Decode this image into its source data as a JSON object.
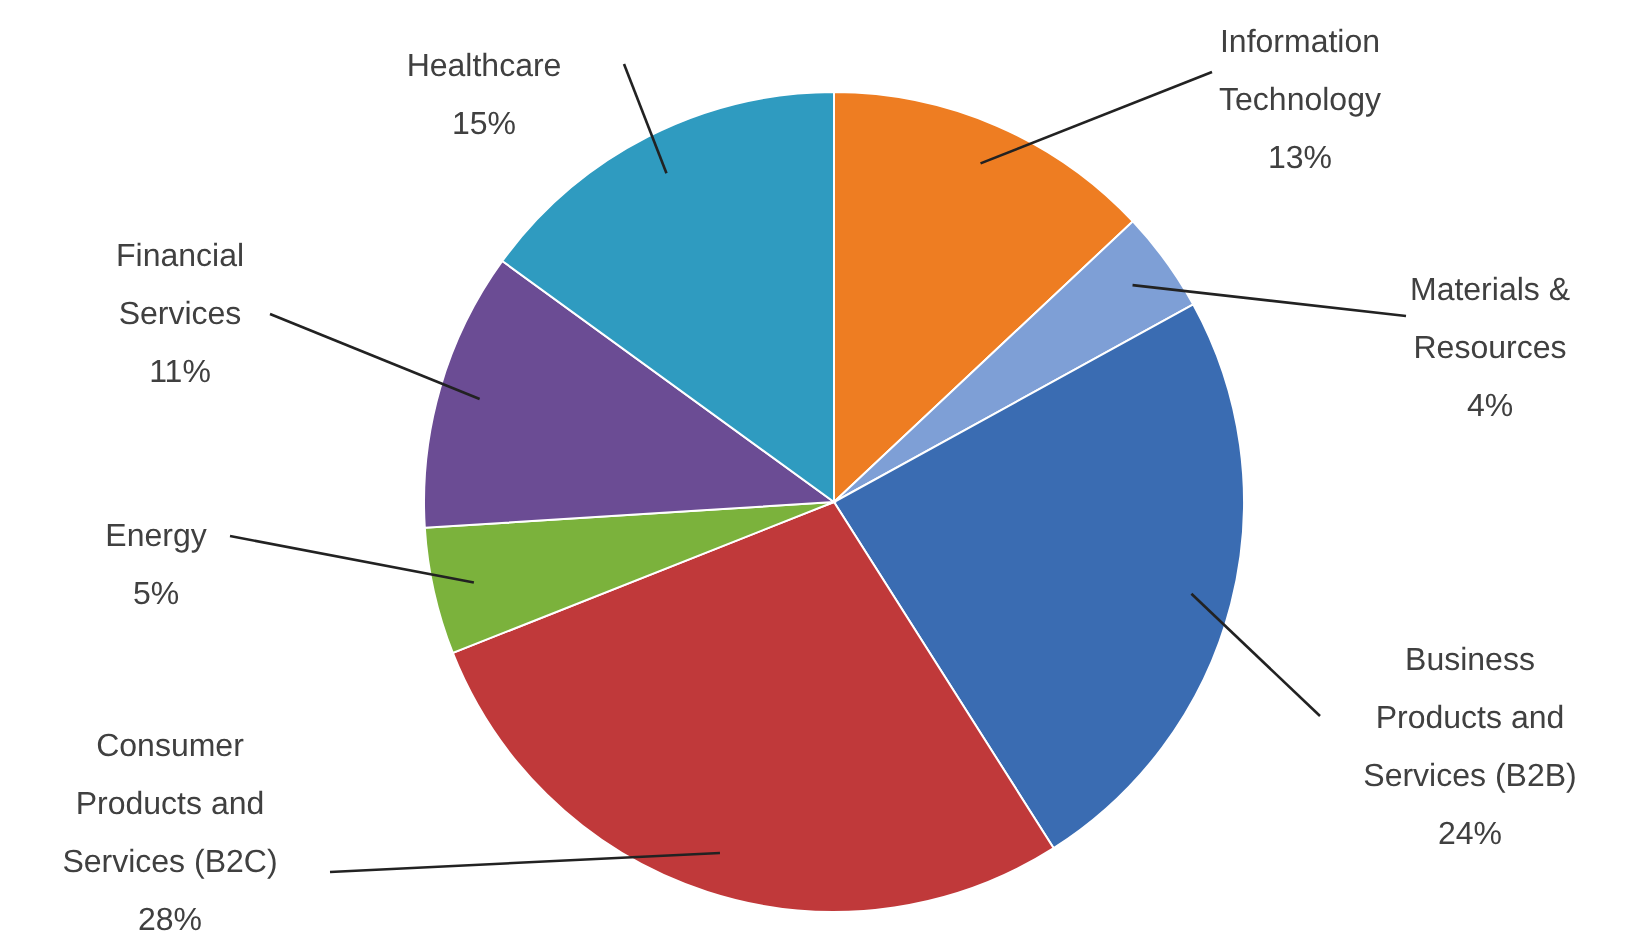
{
  "chart_data": {
    "type": "pie",
    "categories": [
      "Information Technology",
      "Materials & Resources",
      "Business Products and Services (B2B)",
      "Consumer Products and Services (B2C)",
      "Energy",
      "Financial Services",
      "Healthcare"
    ],
    "values": [
      13,
      4,
      24,
      28,
      5,
      11,
      15
    ],
    "colors": [
      "#ee7d22",
      "#7e9fd6",
      "#3a6cb2",
      "#c0393a",
      "#7bb23c",
      "#6b4c94",
      "#2f9bc0"
    ],
    "value_labels": [
      "13%",
      "4%",
      "24%",
      "28%",
      "5%",
      "11%",
      "15%"
    ]
  }
}
